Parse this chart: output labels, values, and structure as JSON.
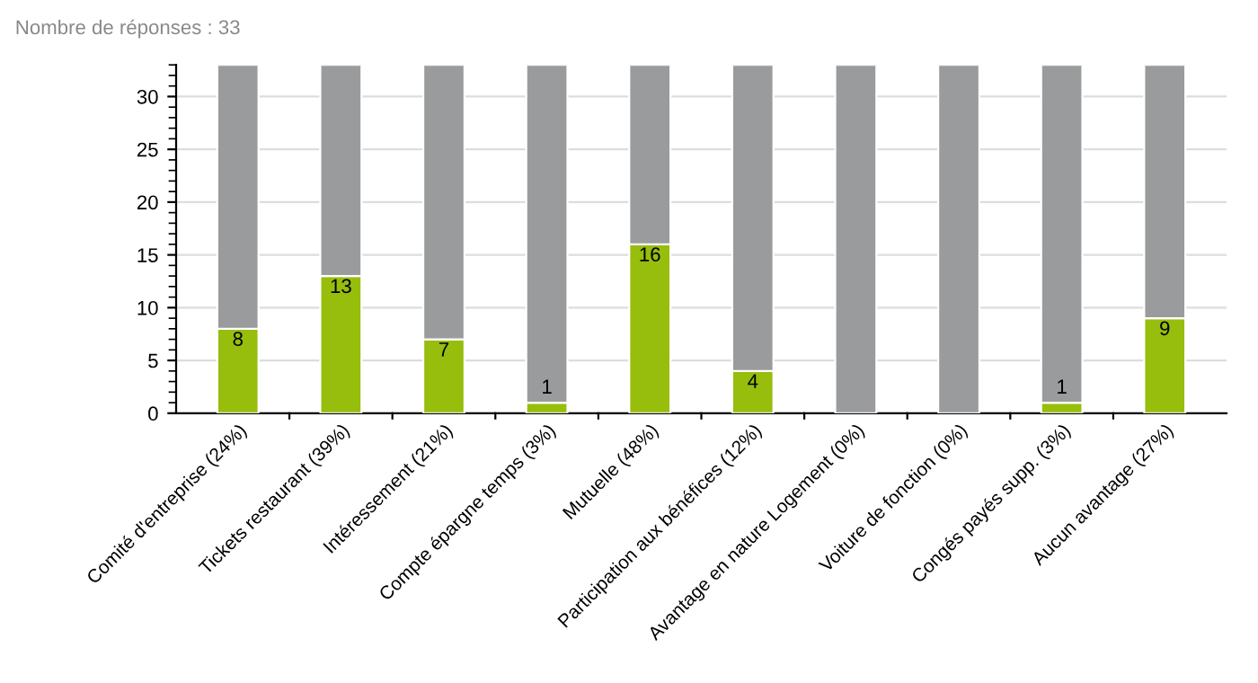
{
  "chart_data": {
    "type": "bar",
    "title": "Nombre de réponses : 33",
    "stacked": true,
    "categories": [
      "Comité d'entreprise (24%)",
      "Tickets restaurant (39%)",
      "Intéressement (21%)",
      "Compte épargne temps (3%)",
      "Mutuelle (48%)",
      "Participation aux bénéfices (12%)",
      "Avantage en nature Logement (0%)",
      "Voiture de fonction (0%)",
      "Congés payés supp. (3%)",
      "Aucun avantage (27%)"
    ],
    "series": [
      {
        "color": "#97bd0d",
        "values": [
          8,
          13,
          7,
          1,
          16,
          4,
          0,
          0,
          1,
          9
        ],
        "value_labels": [
          "8",
          "13",
          "7",
          "1",
          "16",
          "4",
          null,
          null,
          "1",
          "9"
        ]
      },
      {
        "color": "#9a9b9c",
        "values": [
          25,
          20,
          26,
          32,
          17,
          29,
          33,
          33,
          32,
          24
        ]
      }
    ],
    "ylim": [
      0,
      33
    ],
    "yticks": [
      0,
      5,
      10,
      15,
      20,
      25,
      30
    ],
    "grid": "y",
    "legend": false
  }
}
